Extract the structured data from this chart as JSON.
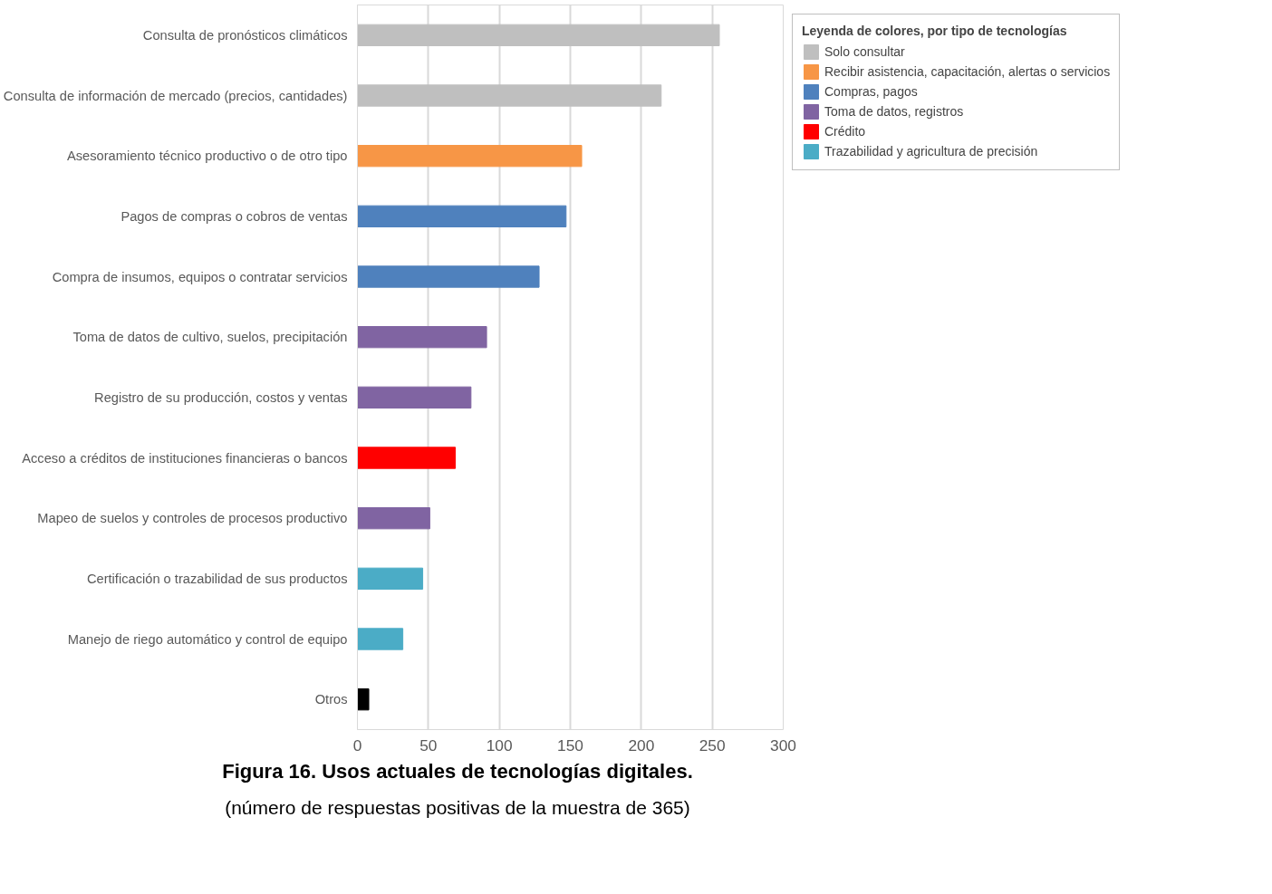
{
  "chart_data": {
    "type": "bar",
    "orientation": "horizontal",
    "title": "Figura 16. Usos actuales de tecnologías digitales.",
    "subtitle": "(número de respuestas positivas de la muestra de 365)",
    "categories": [
      "Consulta de pronósticos climáticos",
      "Consulta de información de mercado (precios, cantidades)",
      "Asesoramiento técnico productivo o de otro tipo",
      "Pagos de compras o cobros de ventas",
      "Compra de insumos, equipos o contratar servicios",
      "Toma de datos de cultivo, suelos, precipitación",
      "Registro de su producción, costos y ventas",
      "Acceso a créditos de instituciones financieras o bancos",
      "Mapeo de suelos y controles de procesos productivo",
      "Certificación o trazabilidad de sus productos",
      "Manejo de riego automático y control de equipo",
      "Otros"
    ],
    "series": [
      {
        "name": "Solo consultar",
        "color": "#bfbfbf",
        "values": [
          255,
          214,
          null,
          null,
          null,
          null,
          null,
          null,
          null,
          null,
          null,
          null
        ]
      },
      {
        "name": "Recibir asistencia, capacitación, alertas o servicios",
        "color": "#f79646",
        "values": [
          null,
          null,
          158,
          null,
          null,
          null,
          null,
          null,
          null,
          null,
          null,
          null
        ]
      },
      {
        "name": "Compras, pagos",
        "color": "#4f81bd",
        "values": [
          null,
          null,
          null,
          147,
          128,
          null,
          null,
          null,
          null,
          null,
          null,
          null
        ]
      },
      {
        "name": "Toma de datos, registros",
        "color": "#8064a2",
        "values": [
          null,
          null,
          null,
          null,
          null,
          91,
          80,
          null,
          51,
          null,
          null,
          null
        ]
      },
      {
        "name": "Crédito",
        "color": "#ff0000",
        "values": [
          null,
          null,
          null,
          null,
          null,
          null,
          null,
          69,
          null,
          null,
          null,
          null
        ]
      },
      {
        "name": "Trazabilidad y agricultura de precisión",
        "color": "#4bacc6",
        "values": [
          null,
          null,
          null,
          null,
          null,
          null,
          null,
          null,
          null,
          46,
          32,
          null
        ]
      },
      {
        "color": "#000000",
        "values": [
          null,
          null,
          null,
          null,
          null,
          null,
          null,
          null,
          null,
          null,
          null,
          8
        ]
      }
    ],
    "legend_title": "Leyenda de colores, por tipo de tecnologías",
    "legend": "right",
    "xlim": [
      0,
      300
    ],
    "xticks": [
      0,
      50,
      100,
      150,
      200,
      250,
      300
    ],
    "grid": "x"
  }
}
